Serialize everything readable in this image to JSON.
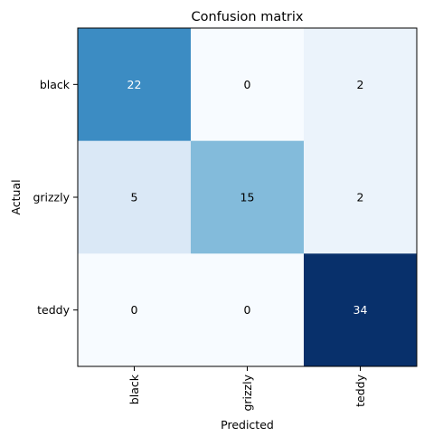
{
  "chart_data": {
    "type": "heatmap",
    "title": "Confusion matrix",
    "xlabel": "Predicted",
    "ylabel": "Actual",
    "x_categories": [
      "black",
      "grizzly",
      "teddy"
    ],
    "y_categories": [
      "black",
      "grizzly",
      "teddy"
    ],
    "values": [
      [
        22,
        0,
        2
      ],
      [
        5,
        15,
        2
      ],
      [
        0,
        0,
        34
      ]
    ],
    "colormap": "Blues",
    "colormap_range": [
      0,
      34
    ],
    "colors": {
      "low": "#f7fbff",
      "high": "#08306b",
      "light_text": "#ffffff",
      "dark_text": "#000000"
    },
    "grid": false,
    "x_tick_rotation": "vertical"
  }
}
